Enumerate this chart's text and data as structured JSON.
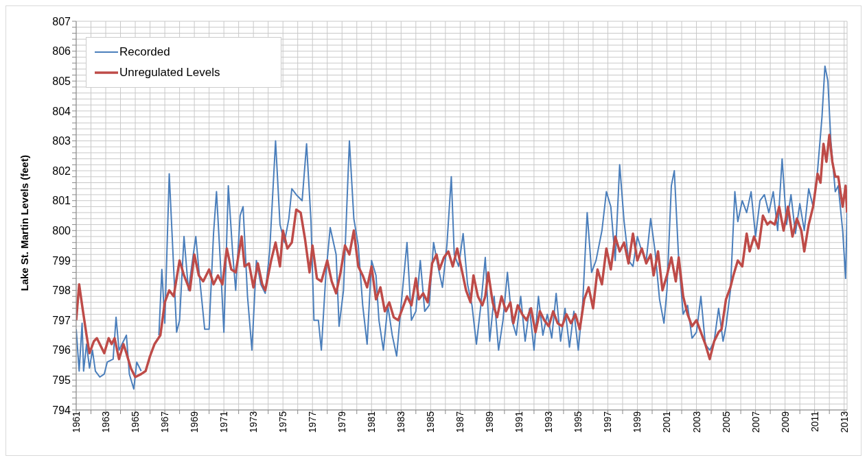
{
  "chart_data": {
    "type": "line",
    "ylabel": "Lake St. Martin Levels (feet)",
    "legend": "top left",
    "grid": true,
    "marker": "none",
    "line_style": "solid",
    "xlim": [
      1961,
      2013.2
    ],
    "xticks": [
      1961,
      {
        "value": 1962,
        "label": null
      },
      1963,
      {
        "value": 1964,
        "label": null
      },
      1965,
      {
        "value": 1966,
        "label": null
      },
      1967,
      {
        "value": 1968,
        "label": null
      },
      1969,
      {
        "value": 1970,
        "label": null
      },
      1971,
      {
        "value": 1972,
        "label": null
      },
      1973,
      {
        "value": 1974,
        "label": null
      },
      1975,
      {
        "value": 1976,
        "label": null
      },
      1977,
      {
        "value": 1978,
        "label": null
      },
      1979,
      {
        "value": 1980,
        "label": null
      },
      1981,
      {
        "value": 1982,
        "label": null
      },
      1983,
      {
        "value": 1984,
        "label": null
      },
      1985,
      {
        "value": 1986,
        "label": null
      },
      1987,
      {
        "value": 1988,
        "label": null
      },
      1989,
      {
        "value": 1990,
        "label": null
      },
      1991,
      {
        "value": 1992,
        "label": null
      },
      1993,
      {
        "value": 1994,
        "label": null
      },
      1995,
      {
        "value": 1996,
        "label": null
      },
      1997,
      {
        "value": 1998,
        "label": null
      },
      1999,
      {
        "value": 2000,
        "label": null
      },
      2001,
      {
        "value": 2002,
        "label": null
      },
      2003,
      {
        "value": 2004,
        "label": null
      },
      2005,
      {
        "value": 2006,
        "label": null
      },
      2007,
      {
        "value": 2008,
        "label": null
      },
      2009,
      {
        "value": 2010,
        "label": null
      },
      2011,
      {
        "value": 2012,
        "label": null
      },
      2013
    ],
    "ylim": [
      794,
      807
    ],
    "yticks": [
      794,
      {
        "value": 794.2,
        "label": null
      },
      {
        "value": 794.4,
        "label": null
      },
      {
        "value": 794.6,
        "label": null
      },
      {
        "value": 794.8,
        "label": null
      },
      795,
      {
        "value": 795.2,
        "label": null
      },
      {
        "value": 795.4,
        "label": null
      },
      {
        "value": 795.6,
        "label": null
      },
      {
        "value": 795.8,
        "label": null
      },
      796,
      {
        "value": 796.2,
        "label": null
      },
      {
        "value": 796.4,
        "label": null
      },
      {
        "value": 796.6,
        "label": null
      },
      {
        "value": 796.8,
        "label": null
      },
      797,
      {
        "value": 797.2,
        "label": null
      },
      {
        "value": 797.4,
        "label": null
      },
      {
        "value": 797.6,
        "label": null
      },
      {
        "value": 797.8,
        "label": null
      },
      798,
      {
        "value": 798.2,
        "label": null
      },
      {
        "value": 798.4,
        "label": null
      },
      {
        "value": 798.6,
        "label": null
      },
      {
        "value": 798.8,
        "label": null
      },
      799,
      {
        "value": 799.2,
        "label": null
      },
      {
        "value": 799.4,
        "label": null
      },
      {
        "value": 799.6,
        "label": null
      },
      {
        "value": 799.8,
        "label": null
      },
      800,
      {
        "value": 800.2,
        "label": null
      },
      {
        "value": 800.4,
        "label": null
      },
      {
        "value": 800.6,
        "label": null
      },
      {
        "value": 800.8,
        "label": null
      },
      801,
      {
        "value": 801.2,
        "label": null
      },
      {
        "value": 801.4,
        "label": null
      },
      {
        "value": 801.6,
        "label": null
      },
      {
        "value": 801.8,
        "label": null
      },
      802,
      {
        "value": 802.2,
        "label": null
      },
      {
        "value": 802.4,
        "label": null
      },
      {
        "value": 802.6,
        "label": null
      },
      {
        "value": 802.8,
        "label": null
      },
      803,
      {
        "value": 803.2,
        "label": null
      },
      {
        "value": 803.4,
        "label": null
      },
      {
        "value": 803.6,
        "label": null
      },
      {
        "value": 803.8,
        "label": null
      },
      804,
      {
        "value": 804.2,
        "label": null
      },
      {
        "value": 804.4,
        "label": null
      },
      {
        "value": 804.6,
        "label": null
      },
      {
        "value": 804.8,
        "label": null
      },
      805,
      {
        "value": 805.2,
        "label": null
      },
      {
        "value": 805.4,
        "label": null
      },
      {
        "value": 805.6,
        "label": null
      },
      {
        "value": 805.8,
        "label": null
      },
      806,
      {
        "value": 806.2,
        "label": null
      },
      {
        "value": 806.4,
        "label": null
      },
      {
        "value": 806.6,
        "label": null
      },
      {
        "value": 806.8,
        "label": null
      },
      807
    ],
    "series": [
      {
        "name": "Recorded",
        "color": "#4a7ebb",
        "x": [
          1961.0,
          1961.2,
          1961.4,
          1961.5,
          1961.7,
          1961.9,
          1962.1,
          1962.3,
          1962.6,
          1962.9,
          1963.1,
          1963.5,
          1963.7,
          1963.9,
          1964.1,
          1964.4,
          1964.6,
          1964.9,
          1965.1,
          1965.4,
          1966.0,
          1966.6,
          1966.8,
          1967.0,
          1967.3,
          1967.5,
          1967.8,
          1968.0,
          1968.3,
          1968.6,
          1968.9,
          1969.1,
          1969.4,
          1969.7,
          1970.0,
          1970.3,
          1970.5,
          1970.8,
          1971.0,
          1971.3,
          1971.6,
          1971.8,
          1972.1,
          1972.3,
          1972.6,
          1972.9,
          1973.2,
          1973.5,
          1973.8,
          1974.1,
          1974.5,
          1974.8,
          1975.1,
          1975.4,
          1975.6,
          1975.9,
          1976.3,
          1976.6,
          1976.9,
          1977.1,
          1977.4,
          1977.6,
          1977.9,
          1978.2,
          1978.6,
          1978.8,
          1979.1,
          1979.5,
          1979.8,
          1980.1,
          1980.4,
          1980.7,
          1981.0,
          1981.3,
          1981.5,
          1981.8,
          1982.1,
          1982.4,
          1982.7,
          1983.0,
          1983.4,
          1983.7,
          1984.0,
          1984.3,
          1984.6,
          1984.9,
          1985.2,
          1985.5,
          1985.8,
          1986.1,
          1986.4,
          1986.6,
          1986.9,
          1987.2,
          1987.5,
          1987.8,
          1988.1,
          1988.4,
          1988.7,
          1989.0,
          1989.3,
          1989.6,
          1989.9,
          1990.2,
          1990.5,
          1990.8,
          1991.1,
          1991.4,
          1991.7,
          1992.0,
          1992.3,
          1992.6,
          1992.9,
          1993.2,
          1993.5,
          1993.8,
          1994.1,
          1994.4,
          1994.7,
          1995.0,
          1995.3,
          1995.6,
          1995.9,
          1996.2,
          1996.6,
          1996.9,
          1997.2,
          1997.5,
          1997.8,
          1998.1,
          1998.4,
          1998.7,
          1999.0,
          1999.3,
          1999.6,
          1999.9,
          2000.2,
          2000.5,
          2000.8,
          2001.0,
          2001.3,
          2001.5,
          2001.8,
          2002.1,
          2002.4,
          2002.7,
          2003.0,
          2003.3,
          2003.6,
          2003.9,
          2004.2,
          2004.5,
          2004.8,
          2005.0,
          2005.3,
          2005.6,
          2005.8,
          2006.1,
          2006.4,
          2006.7,
          2007.0,
          2007.3,
          2007.6,
          2007.9,
          2008.2,
          2008.5,
          2008.8,
          2009.1,
          2009.4,
          2009.7,
          2010.0,
          2010.3,
          2010.6,
          2010.9,
          2011.2,
          2011.5,
          2011.7,
          2011.9,
          2012.1,
          2012.4,
          2012.6,
          2012.9,
          2013.1,
          2013.2
        ],
        "values": [
          796.7,
          795.3,
          796.9,
          795.3,
          796.2,
          795.4,
          796.0,
          795.3,
          795.1,
          795.2,
          795.6,
          795.7,
          797.1,
          796.0,
          796.2,
          796.5,
          795.2,
          794.7,
          795.6,
          795.3,
          null,
          796.5,
          798.7,
          796.9,
          801.9,
          799.8,
          796.6,
          797.0,
          799.8,
          798.0,
          799.1,
          799.8,
          798.2,
          796.7,
          796.7,
          799.9,
          801.3,
          798.6,
          796.6,
          801.5,
          799.2,
          798.0,
          800.5,
          800.8,
          797.8,
          796.0,
          799.0,
          798.2,
          797.9,
          799.3,
          803.0,
          800.2,
          799.6,
          800.4,
          801.4,
          801.2,
          801.0,
          802.9,
          800.3,
          797.0,
          797.0,
          796.0,
          798.5,
          800.1,
          799.2,
          796.8,
          798.0,
          803.0,
          800.4,
          799.5,
          797.5,
          796.2,
          799.0,
          798.5,
          797.0,
          796.0,
          797.5,
          796.5,
          795.8,
          797.5,
          799.6,
          797.0,
          797.3,
          799.0,
          797.3,
          797.5,
          799.6,
          798.8,
          798.1,
          799.5,
          801.8,
          799.2,
          798.8,
          799.9,
          798.2,
          797.5,
          796.2,
          797.5,
          799.1,
          796.3,
          797.8,
          796.0,
          797.0,
          798.6,
          797.0,
          796.5,
          797.8,
          796.3,
          797.4,
          796.0,
          797.8,
          796.5,
          797.2,
          796.4,
          797.9,
          796.3,
          797.4,
          796.1,
          797.3,
          796.0,
          797.6,
          800.6,
          798.6,
          799.0,
          800.0,
          801.3,
          800.8,
          799.0,
          802.2,
          800.3,
          799.0,
          798.8,
          799.8,
          799.3,
          799.0,
          800.4,
          799.3,
          797.7,
          796.9,
          798.0,
          801.5,
          802.0,
          799.0,
          797.2,
          797.5,
          796.4,
          796.6,
          797.8,
          796.2,
          796.0,
          796.3,
          797.4,
          796.3,
          796.8,
          798.0,
          801.3,
          800.3,
          801.0,
          800.6,
          801.3,
          799.8,
          801.0,
          801.2,
          800.6,
          801.3,
          800.0,
          802.4,
          800.2,
          801.2,
          799.9,
          800.9,
          800.0,
          801.4,
          800.8,
          802.0,
          803.8,
          805.5,
          805.0,
          803.0,
          801.3,
          801.5,
          800.0,
          798.4,
          800.6
        ]
      },
      {
        "name": "Unregulated Levels",
        "color": "#be4b48",
        "x": [
          1961.0,
          1961.2,
          1961.4,
          1961.7,
          1961.9,
          1962.2,
          1962.4,
          1962.6,
          1962.9,
          1963.2,
          1963.4,
          1963.6,
          1963.9,
          1964.2,
          1964.4,
          1964.7,
          1965.0,
          1965.4,
          1965.7,
          1966.0,
          1966.3,
          1966.7,
          1967.0,
          1967.3,
          1967.6,
          1968.0,
          1968.3,
          1968.7,
          1969.0,
          1969.3,
          1969.6,
          1970.0,
          1970.3,
          1970.6,
          1970.9,
          1971.2,
          1971.5,
          1971.8,
          1972.2,
          1972.4,
          1972.7,
          1973.0,
          1973.3,
          1973.6,
          1973.8,
          1974.2,
          1974.5,
          1974.8,
          1975.0,
          1975.3,
          1975.6,
          1975.9,
          1976.2,
          1976.5,
          1976.8,
          1977.0,
          1977.3,
          1977.6,
          1978.0,
          1978.3,
          1978.6,
          1978.9,
          1979.2,
          1979.5,
          1979.8,
          1980.1,
          1980.4,
          1980.7,
          1981.0,
          1981.3,
          1981.6,
          1981.9,
          1982.2,
          1982.5,
          1982.8,
          1983.1,
          1983.4,
          1983.7,
          1984.0,
          1984.2,
          1984.5,
          1984.8,
          1985.1,
          1985.4,
          1985.6,
          1985.9,
          1986.2,
          1986.5,
          1986.8,
          1987.1,
          1987.4,
          1987.7,
          1987.9,
          1988.2,
          1988.5,
          1988.7,
          1988.9,
          1989.2,
          1989.5,
          1989.8,
          1990.1,
          1990.4,
          1990.6,
          1990.9,
          1991.2,
          1991.5,
          1991.8,
          1992.1,
          1992.4,
          1992.7,
          1993.0,
          1993.3,
          1993.6,
          1993.9,
          1994.2,
          1994.5,
          1994.8,
          1995.1,
          1995.4,
          1995.7,
          1996.0,
          1996.3,
          1996.6,
          1996.9,
          1997.2,
          1997.5,
          1997.8,
          1998.1,
          1998.4,
          1998.7,
          1999.0,
          1999.3,
          1999.6,
          1999.9,
          2000.1,
          2000.4,
          2000.7,
          2001.0,
          2001.3,
          2001.6,
          2001.8,
          2002.1,
          2002.4,
          2002.7,
          2003.0,
          2003.3,
          2003.6,
          2003.9,
          2004.2,
          2004.5,
          2004.7,
          2005.0,
          2005.3,
          2005.5,
          2005.8,
          2006.1,
          2006.4,
          2006.6,
          2006.9,
          2007.2,
          2007.5,
          2007.8,
          2008.0,
          2008.3,
          2008.6,
          2008.9,
          2009.2,
          2009.5,
          2009.8,
          2010.1,
          2010.3,
          2010.6,
          2010.9,
          2011.2,
          2011.4,
          2011.6,
          2011.8,
          2012.0,
          2012.2,
          2012.4,
          2012.6,
          2012.9,
          2013.1,
          2013.2
        ],
        "values": [
          797.0,
          798.2,
          797.5,
          796.5,
          795.9,
          796.3,
          796.4,
          796.2,
          795.9,
          796.4,
          796.2,
          796.4,
          795.7,
          796.2,
          795.9,
          795.4,
          795.1,
          795.2,
          795.3,
          795.8,
          796.2,
          796.5,
          797.6,
          798.0,
          797.8,
          799.0,
          798.5,
          798.0,
          799.2,
          798.5,
          798.3,
          798.7,
          798.2,
          798.5,
          798.2,
          799.4,
          798.7,
          798.6,
          799.8,
          798.8,
          798.9,
          798.1,
          798.9,
          798.2,
          798.0,
          799.0,
          799.6,
          798.8,
          800.0,
          799.4,
          799.6,
          800.7,
          800.6,
          799.7,
          798.6,
          799.5,
          798.4,
          798.3,
          799.0,
          798.3,
          797.9,
          798.6,
          799.5,
          799.2,
          800.0,
          798.8,
          798.5,
          798.1,
          798.8,
          797.7,
          798.1,
          797.3,
          797.6,
          797.1,
          797.0,
          797.4,
          797.8,
          797.5,
          798.4,
          797.7,
          797.9,
          797.6,
          798.9,
          799.2,
          798.7,
          799.1,
          799.3,
          798.8,
          799.4,
          798.7,
          798.0,
          797.6,
          798.5,
          797.8,
          797.5,
          797.8,
          798.6,
          797.6,
          797.1,
          797.8,
          797.3,
          797.6,
          796.9,
          797.5,
          797.2,
          797.0,
          797.4,
          796.6,
          797.3,
          797.0,
          796.8,
          797.3,
          796.9,
          796.8,
          797.2,
          796.9,
          797.2,
          796.7,
          797.7,
          798.1,
          797.4,
          798.7,
          798.2,
          799.4,
          798.7,
          799.8,
          799.3,
          799.6,
          798.9,
          799.9,
          799.0,
          799.4,
          798.9,
          799.2,
          798.5,
          799.3,
          798.0,
          798.5,
          799.1,
          798.3,
          799.1,
          797.8,
          797.2,
          796.8,
          797.0,
          796.6,
          796.2,
          795.7,
          796.3,
          796.6,
          796.7,
          797.7,
          798.1,
          798.5,
          799.0,
          798.8,
          799.9,
          799.3,
          799.8,
          799.4,
          800.5,
          800.2,
          800.3,
          800.2,
          800.8,
          800.0,
          800.8,
          799.8,
          800.4,
          800.0,
          799.3,
          800.2,
          800.8,
          801.9,
          801.6,
          802.9,
          802.3,
          803.2,
          802.3,
          801.8,
          801.8,
          800.8,
          801.5,
          800.6
        ]
      }
    ]
  }
}
